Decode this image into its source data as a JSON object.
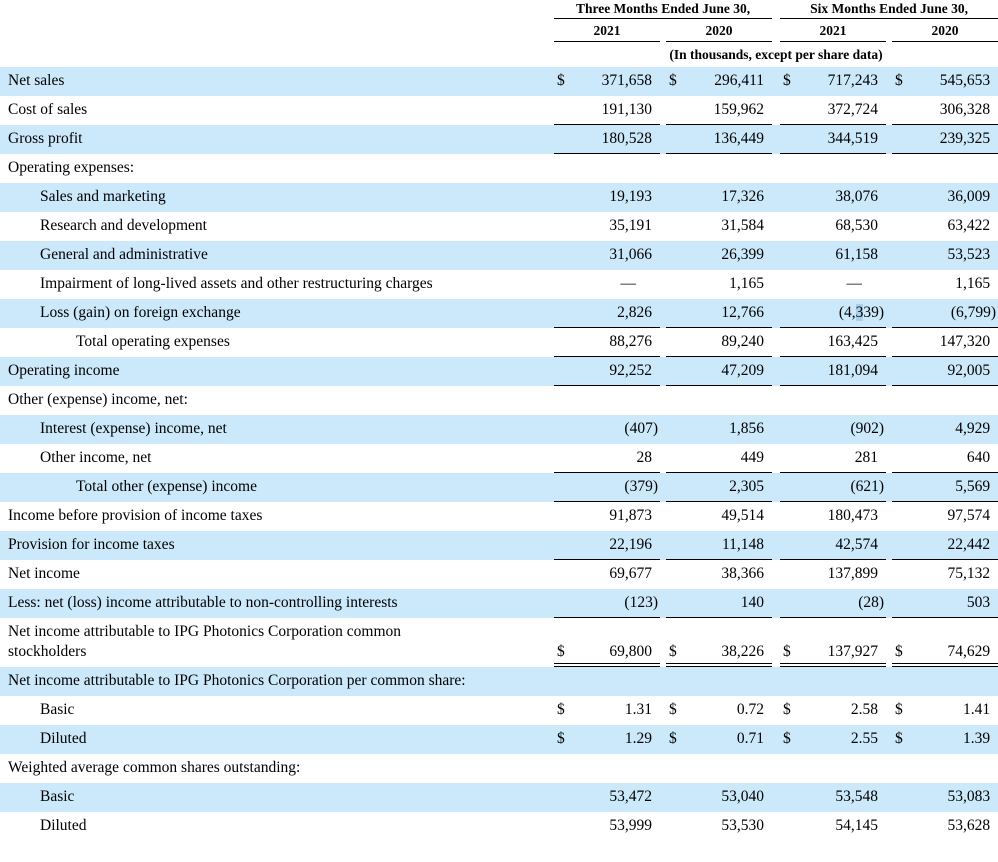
{
  "colors": {
    "row_shade": "#cbe9fa",
    "selection_highlight": "#a9cfe9"
  },
  "table": {
    "currency_symbol": "$",
    "em_dash": "—",
    "col_groups": [
      {
        "label": "Three Months Ended June 30,",
        "years": [
          "2021",
          "2020"
        ]
      },
      {
        "label": "Six Months Ended June 30,",
        "years": [
          "2021",
          "2020"
        ]
      }
    ],
    "units_note": "(In thousands, except per share data)",
    "rows": [
      {
        "label": "Net sales",
        "indent": 0,
        "dollar": true,
        "border": "none",
        "values": [
          "371,658",
          "296,411",
          "717,243",
          "545,653"
        ]
      },
      {
        "label": "Cost of sales",
        "indent": 0,
        "dollar": false,
        "border": "single",
        "values": [
          "191,130",
          "159,962",
          "372,724",
          "306,328"
        ]
      },
      {
        "label": "Gross profit",
        "indent": 0,
        "dollar": false,
        "border": "single",
        "values": [
          "180,528",
          "136,449",
          "344,519",
          "239,325"
        ]
      },
      {
        "label": "Operating expenses:",
        "indent": 0,
        "dollar": false,
        "border": "none",
        "values": []
      },
      {
        "label": "Sales and marketing",
        "indent": 1,
        "dollar": false,
        "border": "none",
        "values": [
          "19,193",
          "17,326",
          "38,076",
          "36,009"
        ]
      },
      {
        "label": "Research and development",
        "indent": 1,
        "dollar": false,
        "border": "none",
        "values": [
          "35,191",
          "31,584",
          "68,530",
          "63,422"
        ]
      },
      {
        "label": "General and administrative",
        "indent": 1,
        "dollar": false,
        "border": "none",
        "values": [
          "31,066",
          "26,399",
          "61,158",
          "53,523"
        ]
      },
      {
        "label": "Impairment of long-lived assets and other restructuring charges",
        "indent": 1,
        "dollar": false,
        "border": "none",
        "values": [
          "—",
          "1,165",
          "—",
          "1,165"
        ]
      },
      {
        "label": "Loss (gain) on foreign exchange",
        "indent": 1,
        "dollar": false,
        "border": "single",
        "values": [
          "2,826",
          "12,766",
          {
            "pre": "(4,",
            "sel": "3",
            "post": "39)"
          },
          "(6,799)"
        ]
      },
      {
        "label": "Total operating expenses",
        "indent": 2,
        "dollar": false,
        "border": "single",
        "values": [
          "88,276",
          "89,240",
          "163,425",
          "147,320"
        ]
      },
      {
        "label": "Operating income",
        "indent": 0,
        "dollar": false,
        "border": "single",
        "values": [
          "92,252",
          "47,209",
          "181,094",
          "92,005"
        ]
      },
      {
        "label": "Other (expense) income, net:",
        "indent": 0,
        "dollar": false,
        "border": "none",
        "values": []
      },
      {
        "label": "Interest (expense) income, net",
        "indent": 1,
        "dollar": false,
        "border": "none",
        "values": [
          "(407)",
          "1,856",
          "(902)",
          "4,929"
        ]
      },
      {
        "label": "Other income, net",
        "indent": 1,
        "dollar": false,
        "border": "single",
        "values": [
          "28",
          "449",
          "281",
          "640"
        ]
      },
      {
        "label": "Total other (expense) income",
        "indent": 2,
        "dollar": false,
        "border": "single",
        "values": [
          "(379)",
          "2,305",
          "(621)",
          "5,569"
        ]
      },
      {
        "label": "Income before provision of income taxes",
        "indent": 0,
        "dollar": false,
        "border": "none",
        "values": [
          "91,873",
          "49,514",
          "180,473",
          "97,574"
        ]
      },
      {
        "label": "Provision for income taxes",
        "indent": 0,
        "dollar": false,
        "border": "single",
        "values": [
          "22,196",
          "11,148",
          "42,574",
          "22,442"
        ]
      },
      {
        "label": "Net income",
        "indent": 0,
        "dollar": false,
        "border": "none",
        "values": [
          "69,677",
          "38,366",
          "137,899",
          "75,132"
        ]
      },
      {
        "label": "Less: net (loss) income attributable to non-controlling interests",
        "indent": 0,
        "dollar": false,
        "border": "single",
        "values": [
          "(123)",
          "140",
          "(28)",
          "503"
        ]
      },
      {
        "label": "Net income attributable to IPG Photonics Corporation common stockholders",
        "indent": 0,
        "dollar": true,
        "border": "double",
        "two_line": true,
        "values": [
          "69,800",
          "38,226",
          "137,927",
          "74,629"
        ]
      },
      {
        "label": "Net income attributable to IPG Photonics Corporation per common share:",
        "indent": 0,
        "dollar": false,
        "border": "none",
        "two_line": true,
        "values": []
      },
      {
        "label": "Basic",
        "indent": 1,
        "dollar": true,
        "border": "none",
        "values": [
          "1.31",
          "0.72",
          "2.58",
          "1.41"
        ]
      },
      {
        "label": "Diluted",
        "indent": 1,
        "dollar": true,
        "border": "none",
        "values": [
          "1.29",
          "0.71",
          "2.55",
          "1.39"
        ]
      },
      {
        "label": "Weighted average common shares outstanding:",
        "indent": 0,
        "dollar": false,
        "border": "none",
        "values": []
      },
      {
        "label": "Basic",
        "indent": 1,
        "dollar": false,
        "border": "none",
        "values": [
          "53,472",
          "53,040",
          "53,548",
          "53,083"
        ]
      },
      {
        "label": "Diluted",
        "indent": 1,
        "dollar": false,
        "border": "none",
        "values": [
          "53,999",
          "53,530",
          "54,145",
          "53,628"
        ]
      }
    ]
  }
}
